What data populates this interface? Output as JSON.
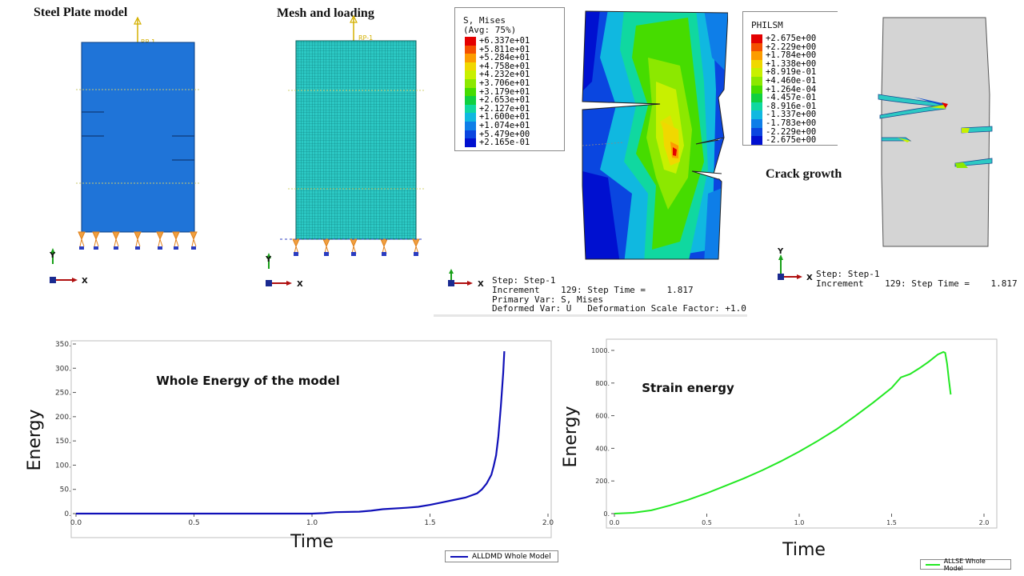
{
  "panels": {
    "plate_title": "Steel Plate model",
    "mesh_title": "Mesh and loading",
    "crack_title": "Crack growth",
    "rp_label": "RP-1",
    "axis_y": "Y",
    "axis_x": "X"
  },
  "mises_legend": {
    "title": "S, Mises",
    "subtitle": "(Avg: 75%)",
    "values": [
      "+6.337e+01",
      "+5.811e+01",
      "+5.284e+01",
      "+4.758e+01",
      "+4.232e+01",
      "+3.706e+01",
      "+3.179e+01",
      "+2.653e+01",
      "+2.127e+01",
      "+1.600e+01",
      "+1.074e+01",
      "+5.479e+00",
      "+2.165e-01"
    ],
    "colors": [
      "#e40000",
      "#f45000",
      "#fc9c00",
      "#f0d800",
      "#c8f000",
      "#8ce800",
      "#46dc00",
      "#10d040",
      "#10d8a0",
      "#10b8e0",
      "#0e7ee8",
      "#0a46e0",
      "#0010d0"
    ]
  },
  "philsm_legend": {
    "title": "PHILSM",
    "values": [
      "+2.675e+00",
      "+2.229e+00",
      "+1.784e+00",
      "+1.338e+00",
      "+8.919e-01",
      "+4.460e-01",
      "+1.264e-04",
      "-4.457e-01",
      "-8.916e-01",
      "-1.337e+00",
      "-1.783e+00",
      "-2.229e+00",
      "-2.675e+00"
    ],
    "colors": [
      "#e40000",
      "#f45000",
      "#fc9c00",
      "#f0d800",
      "#c8f000",
      "#8ce800",
      "#46dc00",
      "#10d040",
      "#10d8a0",
      "#10b8e0",
      "#0e7ee8",
      "#0a46e0",
      "#0010d0"
    ]
  },
  "step_info_mises": {
    "line1": "Step: Step-1",
    "line2": "Increment    129: Step Time =    1.817",
    "line3": "Primary Var: S, Mises",
    "line4": "Deformed Var: U   Deformation Scale Factor: +1.0"
  },
  "step_info_philsm": {
    "line1": "Step: Step-1",
    "line2": "Increment    129: Step Time =    1.817"
  },
  "chart_data": [
    {
      "type": "line",
      "annotation": "Whole Energy of the model",
      "xlabel": "Time",
      "ylabel": "Energy",
      "xlim": [
        0,
        2.0
      ],
      "ylim": [
        0,
        350
      ],
      "x_ticks": [
        "0.0",
        "0.5",
        "1.0",
        "1.5",
        "2.0"
      ],
      "y_ticks": [
        "0.",
        "50.",
        "100.",
        "150.",
        "200.",
        "250.",
        "300.",
        "350."
      ],
      "legend_position": "bottom-right",
      "series": [
        {
          "name": "ALLDMD Whole Model",
          "color": "#1010b8",
          "x": [
            0,
            0.2,
            0.4,
            0.6,
            0.8,
            1.0,
            1.05,
            1.1,
            1.2,
            1.25,
            1.3,
            1.4,
            1.45,
            1.5,
            1.55,
            1.6,
            1.65,
            1.7,
            1.72,
            1.74,
            1.76,
            1.77,
            1.78,
            1.79,
            1.8,
            1.81,
            1.815
          ],
          "y": [
            0,
            0,
            0,
            0,
            0,
            0,
            1,
            3,
            4,
            6,
            9,
            12,
            14,
            18,
            23,
            28,
            33,
            42,
            50,
            62,
            80,
            98,
            120,
            160,
            220,
            290,
            335
          ]
        }
      ]
    },
    {
      "type": "line",
      "annotation": "Strain energy",
      "xlabel": "Time",
      "ylabel": "Energy",
      "xlim": [
        0,
        2.0
      ],
      "ylim": [
        0,
        1000
      ],
      "x_ticks": [
        "0.0",
        "0.5",
        "1.0",
        "1.5",
        "2.0"
      ],
      "y_ticks": [
        "0.",
        "200.",
        "400.",
        "600.",
        "800.",
        "1000."
      ],
      "legend_position": "bottom-right",
      "series": [
        {
          "name": "ALLSE Whole Model",
          "color": "#22e822",
          "x": [
            0,
            0.1,
            0.2,
            0.3,
            0.4,
            0.5,
            0.6,
            0.7,
            0.8,
            0.9,
            1.0,
            1.1,
            1.2,
            1.3,
            1.4,
            1.5,
            1.55,
            1.6,
            1.65,
            1.7,
            1.75,
            1.78,
            1.79,
            1.8,
            1.81,
            1.82
          ],
          "y": [
            0,
            5,
            20,
            50,
            85,
            125,
            170,
            215,
            265,
            320,
            380,
            445,
            515,
            595,
            680,
            770,
            835,
            855,
            890,
            930,
            975,
            990,
            985,
            920,
            820,
            730
          ]
        }
      ]
    }
  ]
}
